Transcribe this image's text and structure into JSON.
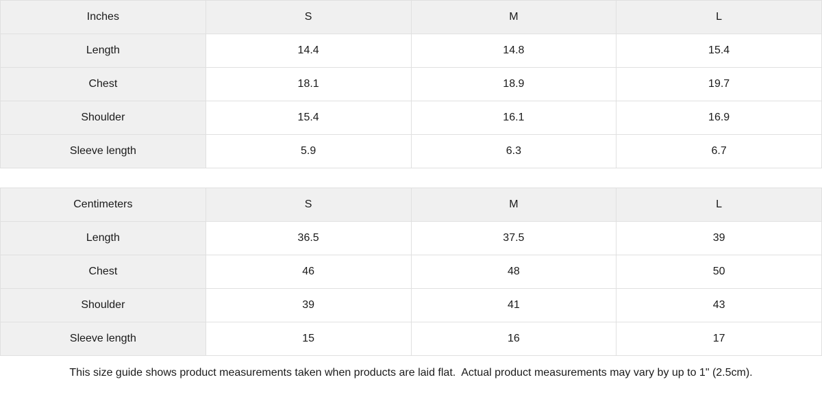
{
  "colors": {
    "header_bg": "#f0f0f0",
    "row_label_bg": "#f0f0f0",
    "cell_bg": "#ffffff",
    "border": "#e0e0e0",
    "text": "#1a1a1a"
  },
  "chart_data": [
    {
      "type": "table",
      "unit": "Inches",
      "header": [
        "Inches",
        "S",
        "M",
        "L"
      ],
      "rows": [
        [
          "Length",
          "14.4",
          "14.8",
          "15.4"
        ],
        [
          "Chest",
          "18.1",
          "18.9",
          "19.7"
        ],
        [
          "Shoulder",
          "15.4",
          "16.1",
          "16.9"
        ],
        [
          "Sleeve length",
          "5.9",
          "6.3",
          "6.7"
        ]
      ]
    },
    {
      "type": "table",
      "unit": "Centimeters",
      "header": [
        "Centimeters",
        "S",
        "M",
        "L"
      ],
      "rows": [
        [
          "Length",
          "36.5",
          "37.5",
          "39"
        ],
        [
          "Chest",
          "46",
          "48",
          "50"
        ],
        [
          "Shoulder",
          "39",
          "41",
          "43"
        ],
        [
          "Sleeve length",
          "15",
          "16",
          "17"
        ]
      ]
    }
  ],
  "footer": {
    "note": "This size guide shows product measurements taken when products are laid flat.  Actual product measurements may vary by up to 1\" (2.5cm)."
  }
}
